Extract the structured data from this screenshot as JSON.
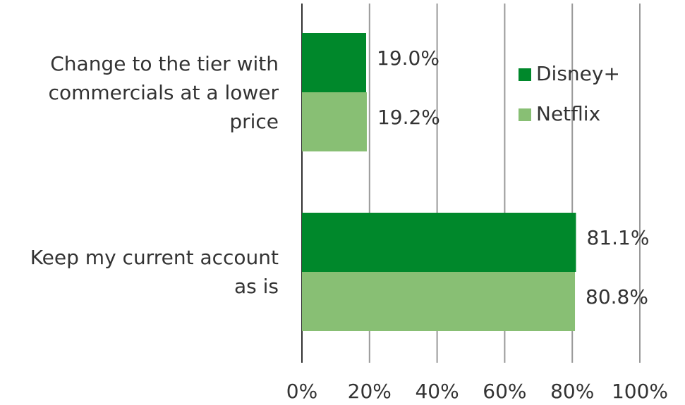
{
  "chart_data": {
    "type": "bar",
    "orientation": "horizontal",
    "categories": [
      "Change to the tier with commercials at a lower price",
      "Keep my current account as is"
    ],
    "series": [
      {
        "name": "Disney+",
        "color": "#00882b",
        "values": [
          19.0,
          81.1
        ],
        "value_labels": [
          "19.0%",
          "81.1%"
        ]
      },
      {
        "name": "Netflix",
        "color": "#88bf74",
        "values": [
          19.2,
          80.8
        ],
        "value_labels": [
          "19.2%",
          "80.8%"
        ]
      }
    ],
    "xlim": [
      0,
      100
    ],
    "xticks": [
      {
        "value": 0,
        "label": "0%"
      },
      {
        "value": 20,
        "label": "20%"
      },
      {
        "value": 40,
        "label": "40%"
      },
      {
        "value": 60,
        "label": "60%"
      },
      {
        "value": 80,
        "label": "80%"
      },
      {
        "value": 100,
        "label": "100%"
      }
    ],
    "grid": true,
    "legend": "upper right"
  }
}
